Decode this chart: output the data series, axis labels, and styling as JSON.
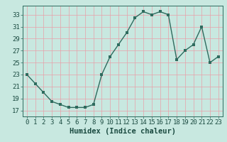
{
  "x": [
    0,
    1,
    2,
    3,
    4,
    5,
    6,
    7,
    8,
    9,
    10,
    11,
    12,
    13,
    14,
    15,
    16,
    17,
    18,
    19,
    20,
    21,
    22,
    23
  ],
  "y": [
    23,
    21.5,
    20,
    18.5,
    18,
    17.5,
    17.5,
    17.5,
    18,
    23,
    26,
    28,
    30,
    32.5,
    33.5,
    33,
    33.5,
    33,
    25.5,
    27,
    28,
    31,
    25,
    26
  ],
  "line_color": "#2e6b5e",
  "marker_color": "#2e6b5e",
  "bg_color": "#c8e8e0",
  "grid_color": "#e8a0a8",
  "xlabel": "Humidex (Indice chaleur)",
  "xlim": [
    -0.5,
    23.5
  ],
  "ylim": [
    16,
    34.5
  ],
  "yticks": [
    17,
    19,
    21,
    23,
    25,
    27,
    29,
    31,
    33
  ],
  "xticks": [
    0,
    1,
    2,
    3,
    4,
    5,
    6,
    7,
    8,
    9,
    10,
    11,
    12,
    13,
    14,
    15,
    16,
    17,
    18,
    19,
    20,
    21,
    22,
    23
  ],
  "xlabel_fontsize": 7.5,
  "tick_fontsize": 6.5,
  "line_width": 1.0,
  "marker_size": 2.5
}
